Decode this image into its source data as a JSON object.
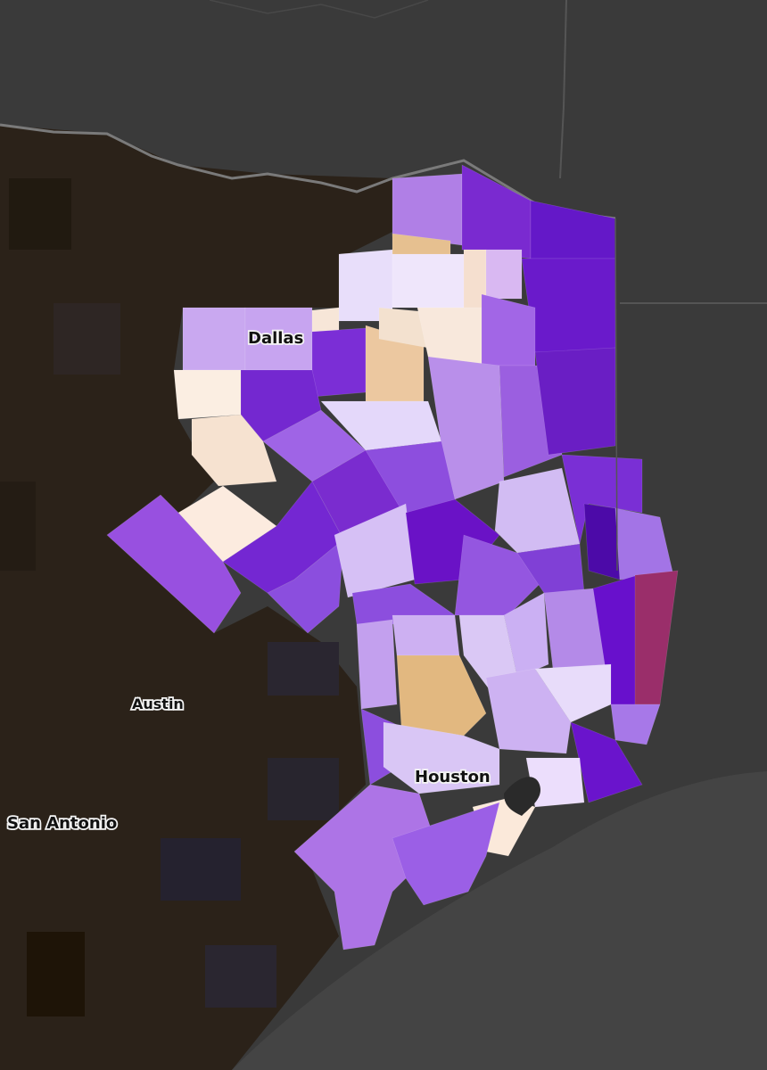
{
  "map": {
    "labels": [
      "Dallas",
      "Austin",
      "Houston",
      "San Antonio"
    ]
  }
}
